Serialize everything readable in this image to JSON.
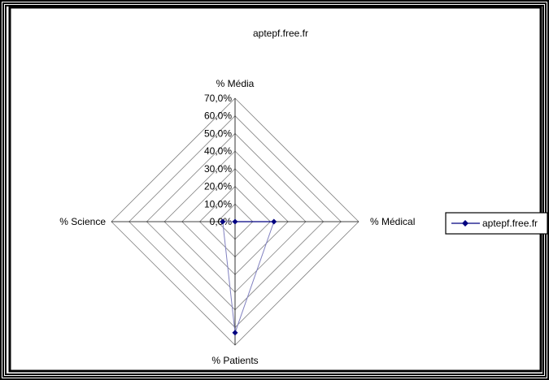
{
  "chart_data": {
    "type": "radar",
    "title": "aptepf.free.fr",
    "axes": [
      "% Média",
      "% Médical",
      "% Patients",
      "% Science"
    ],
    "radial_ticks": [
      "0,0%",
      "10,0%",
      "20,0%",
      "30,0%",
      "40,0%",
      "50,0%",
      "60,0%",
      "70,0%"
    ],
    "rlim": [
      0,
      70
    ],
    "grid": true,
    "legend_position": "right",
    "series": [
      {
        "name": "aptepf.free.fr",
        "values": [
          0,
          22,
          63,
          7
        ],
        "color": "#000080"
      }
    ]
  },
  "colors": {
    "series_line": "#8080c0",
    "series_marker": "#000080",
    "grid": "#808080"
  }
}
